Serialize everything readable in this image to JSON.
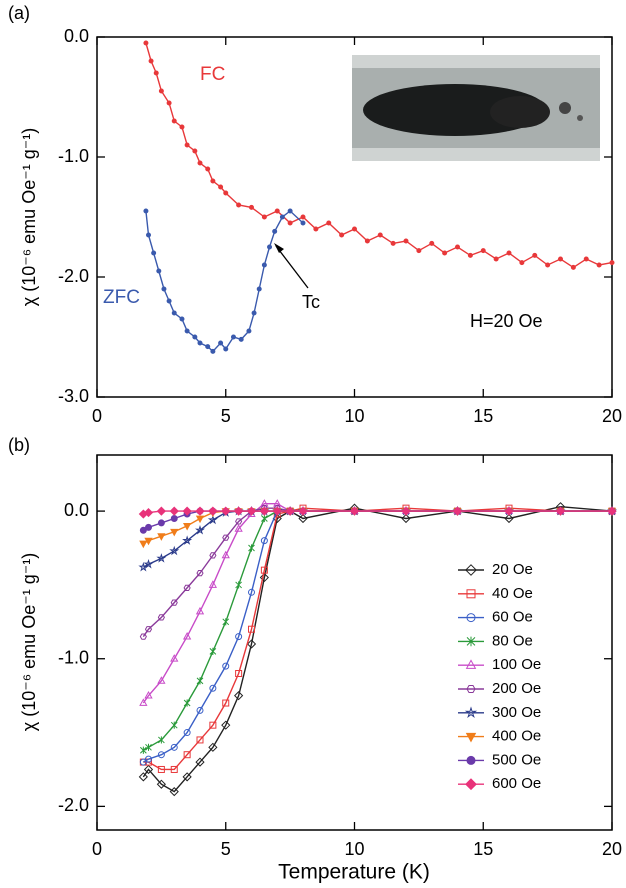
{
  "chart_data": [
    {
      "type": "line",
      "panel_label": "(a)",
      "y_label": "χ (10⁻⁶ emu Oe⁻¹ g⁻¹)",
      "annotations": {
        "fc": "FC",
        "zfc": "ZFC",
        "tc": "Tc",
        "field": "H=20 Oe"
      },
      "xlim": [
        0,
        20
      ],
      "xticks": [
        0,
        5,
        10,
        15,
        20
      ],
      "ylim": [
        -3,
        0
      ],
      "yticks": [
        {
          "value": 0,
          "label": "0.0"
        },
        {
          "value": -1,
          "label": "-1.0"
        },
        {
          "value": -2,
          "label": "-2.0"
        },
        {
          "value": -3,
          "label": "-3.0"
        }
      ],
      "series": [
        {
          "name": "FC",
          "color": "#e8383a",
          "x": [
            1.9,
            2.1,
            2.3,
            2.5,
            2.8,
            3.0,
            3.3,
            3.5,
            3.8,
            4.0,
            4.3,
            4.5,
            4.8,
            5.0,
            5.5,
            6.0,
            6.5,
            7.0,
            7.5,
            8.0,
            8.5,
            9.0,
            9.5,
            10,
            10.5,
            11,
            11.5,
            12,
            12.5,
            13,
            13.5,
            14,
            14.5,
            15,
            15.5,
            16,
            16.5,
            17,
            17.5,
            18,
            18.5,
            19,
            19.5,
            20
          ],
          "values": [
            -0.05,
            -0.2,
            -0.3,
            -0.45,
            -0.55,
            -0.7,
            -0.75,
            -0.9,
            -0.95,
            -1.05,
            -1.1,
            -1.2,
            -1.25,
            -1.3,
            -1.4,
            -1.42,
            -1.5,
            -1.45,
            -1.55,
            -1.5,
            -1.6,
            -1.55,
            -1.65,
            -1.6,
            -1.7,
            -1.65,
            -1.72,
            -1.7,
            -1.78,
            -1.72,
            -1.8,
            -1.75,
            -1.82,
            -1.78,
            -1.85,
            -1.8,
            -1.88,
            -1.82,
            -1.9,
            -1.85,
            -1.92,
            -1.85,
            -1.9,
            -1.88
          ]
        },
        {
          "name": "ZFC",
          "color": "#3a5aad",
          "x": [
            1.9,
            2.0,
            2.2,
            2.4,
            2.6,
            2.8,
            3.0,
            3.3,
            3.5,
            3.8,
            4.0,
            4.3,
            4.5,
            4.8,
            5.0,
            5.3,
            5.6,
            5.9,
            6.1,
            6.3,
            6.5,
            6.7,
            6.9,
            7.2,
            7.5,
            8.0
          ],
          "values": [
            -1.45,
            -1.65,
            -1.8,
            -1.95,
            -2.1,
            -2.2,
            -2.3,
            -2.35,
            -2.45,
            -2.5,
            -2.55,
            -2.58,
            -2.62,
            -2.55,
            -2.6,
            -2.5,
            -2.52,
            -2.45,
            -2.3,
            -2.1,
            -1.9,
            -1.75,
            -1.62,
            -1.5,
            -1.45,
            -1.55
          ]
        }
      ]
    },
    {
      "type": "line",
      "panel_label": "(b)",
      "y_label": "χ (10⁻⁶ emu Oe⁻¹ g⁻¹)",
      "x_label": "Temperature (K)",
      "xlim": [
        0,
        20
      ],
      "xticks": [
        0,
        5,
        10,
        15,
        20
      ],
      "ylim": [
        -2.16,
        0.38
      ],
      "yticks": [
        {
          "value": 0,
          "label": "0.0"
        },
        {
          "value": -1,
          "label": "-1.0"
        },
        {
          "value": -2,
          "label": "-2.0"
        }
      ],
      "x": [
        1.8,
        2,
        2.5,
        3,
        3.5,
        4,
        4.5,
        5,
        5.5,
        6,
        6.5,
        7,
        7.5,
        8,
        10,
        12,
        14,
        16,
        18,
        20
      ],
      "series": [
        {
          "name": "20 Oe",
          "color": "#222222",
          "marker": "diamond",
          "filled": false,
          "values": [
            -1.8,
            -1.75,
            -1.85,
            -1.9,
            -1.8,
            -1.7,
            -1.6,
            -1.45,
            -1.25,
            -0.9,
            -0.45,
            -0.05,
            0.0,
            -0.05,
            0.02,
            -0.05,
            0.0,
            -0.05,
            0.03,
            0.0
          ]
        },
        {
          "name": "40 Oe",
          "color": "#e8383a",
          "marker": "square",
          "filled": false,
          "values": [
            -1.7,
            -1.7,
            -1.75,
            -1.75,
            -1.65,
            -1.55,
            -1.45,
            -1.3,
            -1.1,
            -0.8,
            -0.4,
            -0.02,
            0.0,
            0.02,
            0.0,
            0.02,
            0.0,
            0.02,
            0.0,
            0.0
          ]
        },
        {
          "name": "60 Oe",
          "color": "#3a5fc7",
          "marker": "circle",
          "filled": false,
          "values": [
            -1.7,
            -1.68,
            -1.65,
            -1.6,
            -1.5,
            -1.35,
            -1.2,
            -1.05,
            -0.85,
            -0.55,
            -0.2,
            0.0,
            0.0,
            0.0,
            0.0,
            0.0,
            0.0,
            0.0,
            0.0,
            0.0
          ]
        },
        {
          "name": "80 Oe",
          "color": "#2a9a3a",
          "marker": "cross",
          "filled": false,
          "values": [
            -1.62,
            -1.6,
            -1.55,
            -1.45,
            -1.3,
            -1.15,
            -0.95,
            -0.75,
            -0.5,
            -0.25,
            -0.05,
            0.0,
            0.0,
            0.0,
            0.0,
            0.0,
            0.0,
            0.0,
            0.0,
            0.0
          ]
        },
        {
          "name": "100 Oe",
          "color": "#c84bc8",
          "marker": "triangle",
          "filled": false,
          "values": [
            -1.3,
            -1.25,
            -1.15,
            -1.0,
            -0.85,
            -0.68,
            -0.5,
            -0.3,
            -0.12,
            -0.02,
            0.05,
            0.05,
            0.0,
            0.0,
            0.0,
            0.0,
            0.0,
            0.0,
            0.0,
            0.0
          ]
        },
        {
          "name": "200 Oe",
          "color": "#8a3a9a",
          "marker": "hexagon",
          "filled": false,
          "values": [
            -0.85,
            -0.8,
            -0.72,
            -0.62,
            -0.52,
            -0.42,
            -0.3,
            -0.18,
            -0.07,
            0.0,
            0.02,
            0.02,
            0.0,
            0.0,
            0.0,
            0.0,
            0.0,
            0.0,
            0.0,
            0.0
          ]
        },
        {
          "name": "300 Oe",
          "color": "#2a3a8a",
          "marker": "star",
          "filled": false,
          "values": [
            -0.38,
            -0.36,
            -0.32,
            -0.27,
            -0.2,
            -0.13,
            -0.06,
            -0.01,
            0.0,
            0.0,
            0.0,
            0.0,
            0.0,
            0.0,
            0.0,
            0.0,
            0.0,
            0.0,
            0.0,
            0.0
          ]
        },
        {
          "name": "400 Oe",
          "color": "#f07d1a",
          "marker": "down-triangle",
          "filled": true,
          "values": [
            -0.22,
            -0.2,
            -0.17,
            -0.14,
            -0.1,
            -0.05,
            -0.01,
            0.0,
            0.0,
            0.0,
            0.0,
            0.0,
            0.0,
            0.0,
            0.0,
            0.0,
            0.0,
            0.0,
            0.0,
            0.0
          ]
        },
        {
          "name": "500 Oe",
          "color": "#6a3aaa",
          "marker": "circle",
          "filled": true,
          "values": [
            -0.13,
            -0.11,
            -0.08,
            -0.05,
            -0.02,
            0.0,
            0.0,
            0.0,
            0.0,
            0.0,
            0.0,
            0.0,
            0.0,
            0.0,
            0.0,
            0.0,
            0.0,
            0.0,
            0.0,
            0.0
          ]
        },
        {
          "name": "600 Oe",
          "color": "#e8337a",
          "marker": "diamond",
          "filled": true,
          "values": [
            -0.02,
            -0.01,
            0.0,
            0.0,
            0.0,
            0.0,
            0.0,
            0.0,
            0.0,
            0.0,
            0.0,
            0.0,
            0.0,
            0.0,
            0.0,
            0.0,
            0.0,
            0.0,
            0.0,
            0.0
          ]
        }
      ]
    }
  ]
}
